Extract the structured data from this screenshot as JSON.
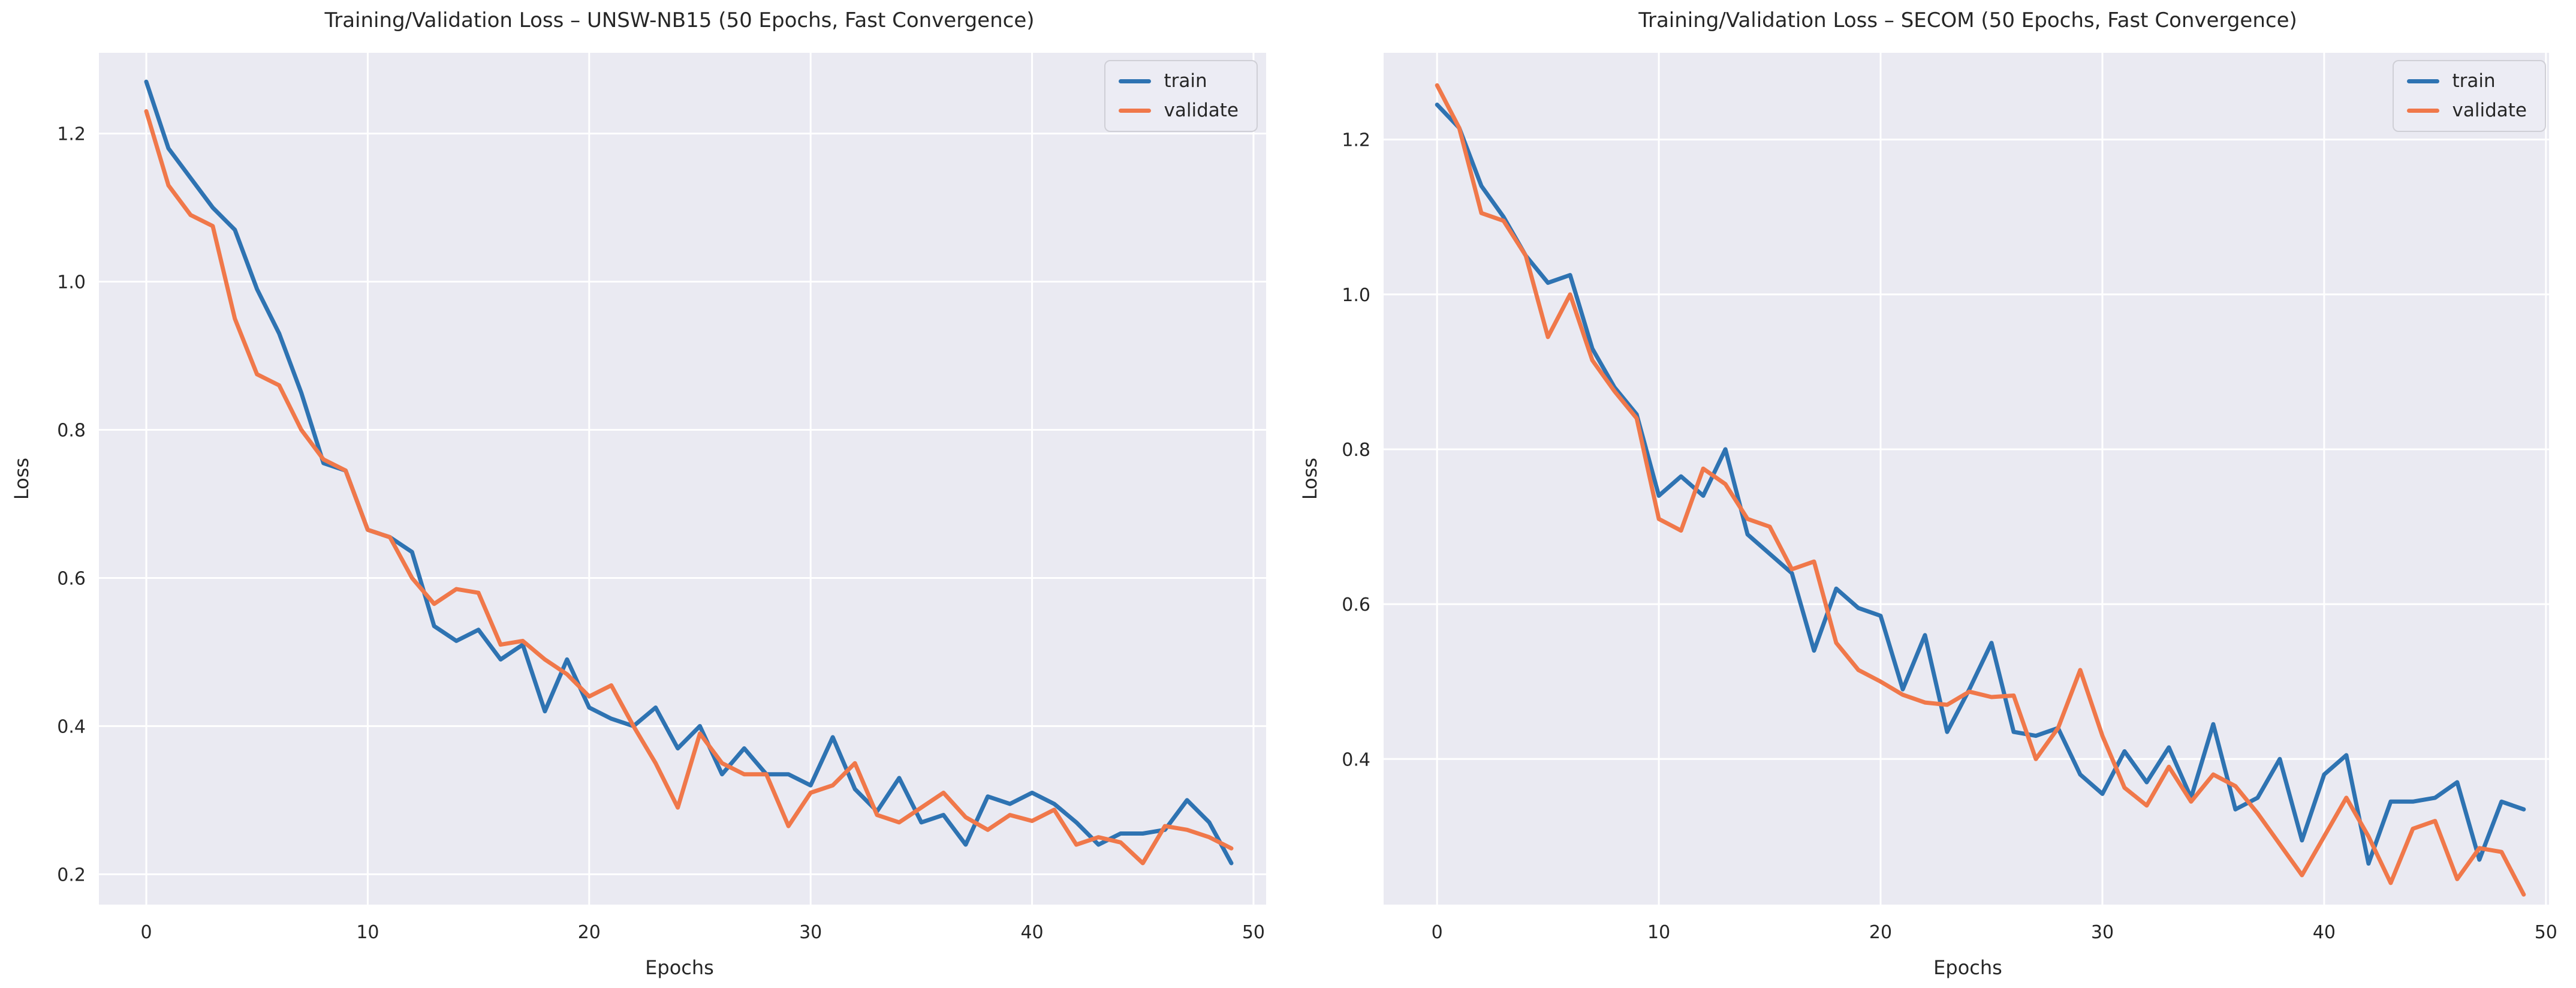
{
  "page": {
    "background": "#ffffff"
  },
  "chart_data": [
    {
      "type": "line",
      "title": "Training/Validation Loss – UNSW-NB15 (50 Epochs, Fast Convergence)",
      "xlabel": "Epochs",
      "ylabel": "Loss",
      "grid": true,
      "legend_position": "upper right",
      "plot_background": "#eaeaf2",
      "grid_color": "#ffffff",
      "text_color": "#262626",
      "x_ticks": [
        0,
        10,
        20,
        30,
        40,
        50
      ],
      "y_ticks": [
        "0.2",
        "0.4",
        "0.6",
        "0.8",
        "1.0",
        "1.2"
      ],
      "xlim": [
        -2.14,
        50.57
      ],
      "ylim": [
        0.159,
        1.309
      ],
      "x_note": "x = epoch index 0..49",
      "series": [
        {
          "name": "train",
          "color": "#2e73b2",
          "values": [
            1.27,
            1.18,
            1.14,
            1.1,
            1.07,
            0.99,
            0.93,
            0.85,
            0.755,
            0.745,
            0.665,
            0.655,
            0.635,
            0.535,
            0.515,
            0.53,
            0.49,
            0.51,
            0.42,
            0.49,
            0.425,
            0.41,
            0.4,
            0.425,
            0.37,
            0.4,
            0.335,
            0.37,
            0.335,
            0.335,
            0.32,
            0.385,
            0.315,
            0.285,
            0.33,
            0.27,
            0.28,
            0.24,
            0.305,
            0.295,
            0.31,
            0.295,
            0.27,
            0.24,
            0.255,
            0.255,
            0.26,
            0.3,
            0.27,
            0.215
          ]
        },
        {
          "name": "validate",
          "color": "#f0784a",
          "values": [
            1.23,
            1.13,
            1.09,
            1.075,
            0.95,
            0.875,
            0.86,
            0.8,
            0.76,
            0.745,
            0.665,
            0.655,
            0.6,
            0.565,
            0.585,
            0.58,
            0.51,
            0.515,
            0.49,
            0.47,
            0.44,
            0.455,
            0.4,
            0.35,
            0.29,
            0.39,
            0.35,
            0.335,
            0.335,
            0.265,
            0.31,
            0.32,
            0.35,
            0.28,
            0.27,
            0.29,
            0.31,
            0.277,
            0.26,
            0.28,
            0.272,
            0.287,
            0.24,
            0.25,
            0.243,
            0.215,
            0.265,
            0.26,
            0.25,
            0.235
          ]
        }
      ]
    },
    {
      "type": "line",
      "title": "Training/Validation Loss – SECOM (50 Epochs, Fast Convergence)",
      "xlabel": "Epochs",
      "ylabel": "Loss",
      "grid": true,
      "legend_position": "upper right",
      "plot_background": "#eaeaf2",
      "grid_color": "#ffffff",
      "text_color": "#262626",
      "x_ticks": [
        0,
        10,
        20,
        30,
        40,
        50
      ],
      "y_ticks": [
        "0.4",
        "0.6",
        "0.8",
        "1.0",
        "1.2"
      ],
      "xlim": [
        -2.41,
        50.14
      ],
      "ylim": [
        0.212,
        1.312
      ],
      "x_note": "x = epoch index 0..49",
      "series": [
        {
          "name": "train",
          "color": "#2e73b2",
          "values": [
            1.245,
            1.215,
            1.14,
            1.1,
            1.05,
            1.015,
            1.025,
            0.93,
            0.88,
            0.845,
            0.74,
            0.765,
            0.74,
            0.8,
            0.69,
            0.665,
            0.64,
            0.54,
            0.62,
            0.595,
            0.585,
            0.49,
            0.56,
            0.435,
            0.49,
            0.55,
            0.435,
            0.43,
            0.44,
            0.38,
            0.355,
            0.41,
            0.37,
            0.415,
            0.35,
            0.445,
            0.335,
            0.35,
            0.4,
            0.295,
            0.38,
            0.405,
            0.265,
            0.345,
            0.345,
            0.35,
            0.37,
            0.27,
            0.345,
            0.335
          ]
        },
        {
          "name": "validate",
          "color": "#f0784a",
          "values": [
            1.27,
            1.215,
            1.105,
            1.095,
            1.05,
            0.945,
            1.0,
            0.915,
            0.875,
            0.84,
            0.71,
            0.695,
            0.775,
            0.755,
            0.71,
            0.7,
            0.645,
            0.655,
            0.55,
            0.515,
            0.5,
            0.483,
            0.473,
            0.47,
            0.487,
            0.48,
            0.482,
            0.4,
            0.44,
            0.515,
            0.43,
            0.363,
            0.34,
            0.39,
            0.345,
            0.38,
            0.365,
            0.33,
            0.29,
            0.25,
            0.3,
            0.35,
            0.3,
            0.24,
            0.31,
            0.32,
            0.245,
            0.285,
            0.28,
            0.225
          ]
        }
      ]
    }
  ]
}
